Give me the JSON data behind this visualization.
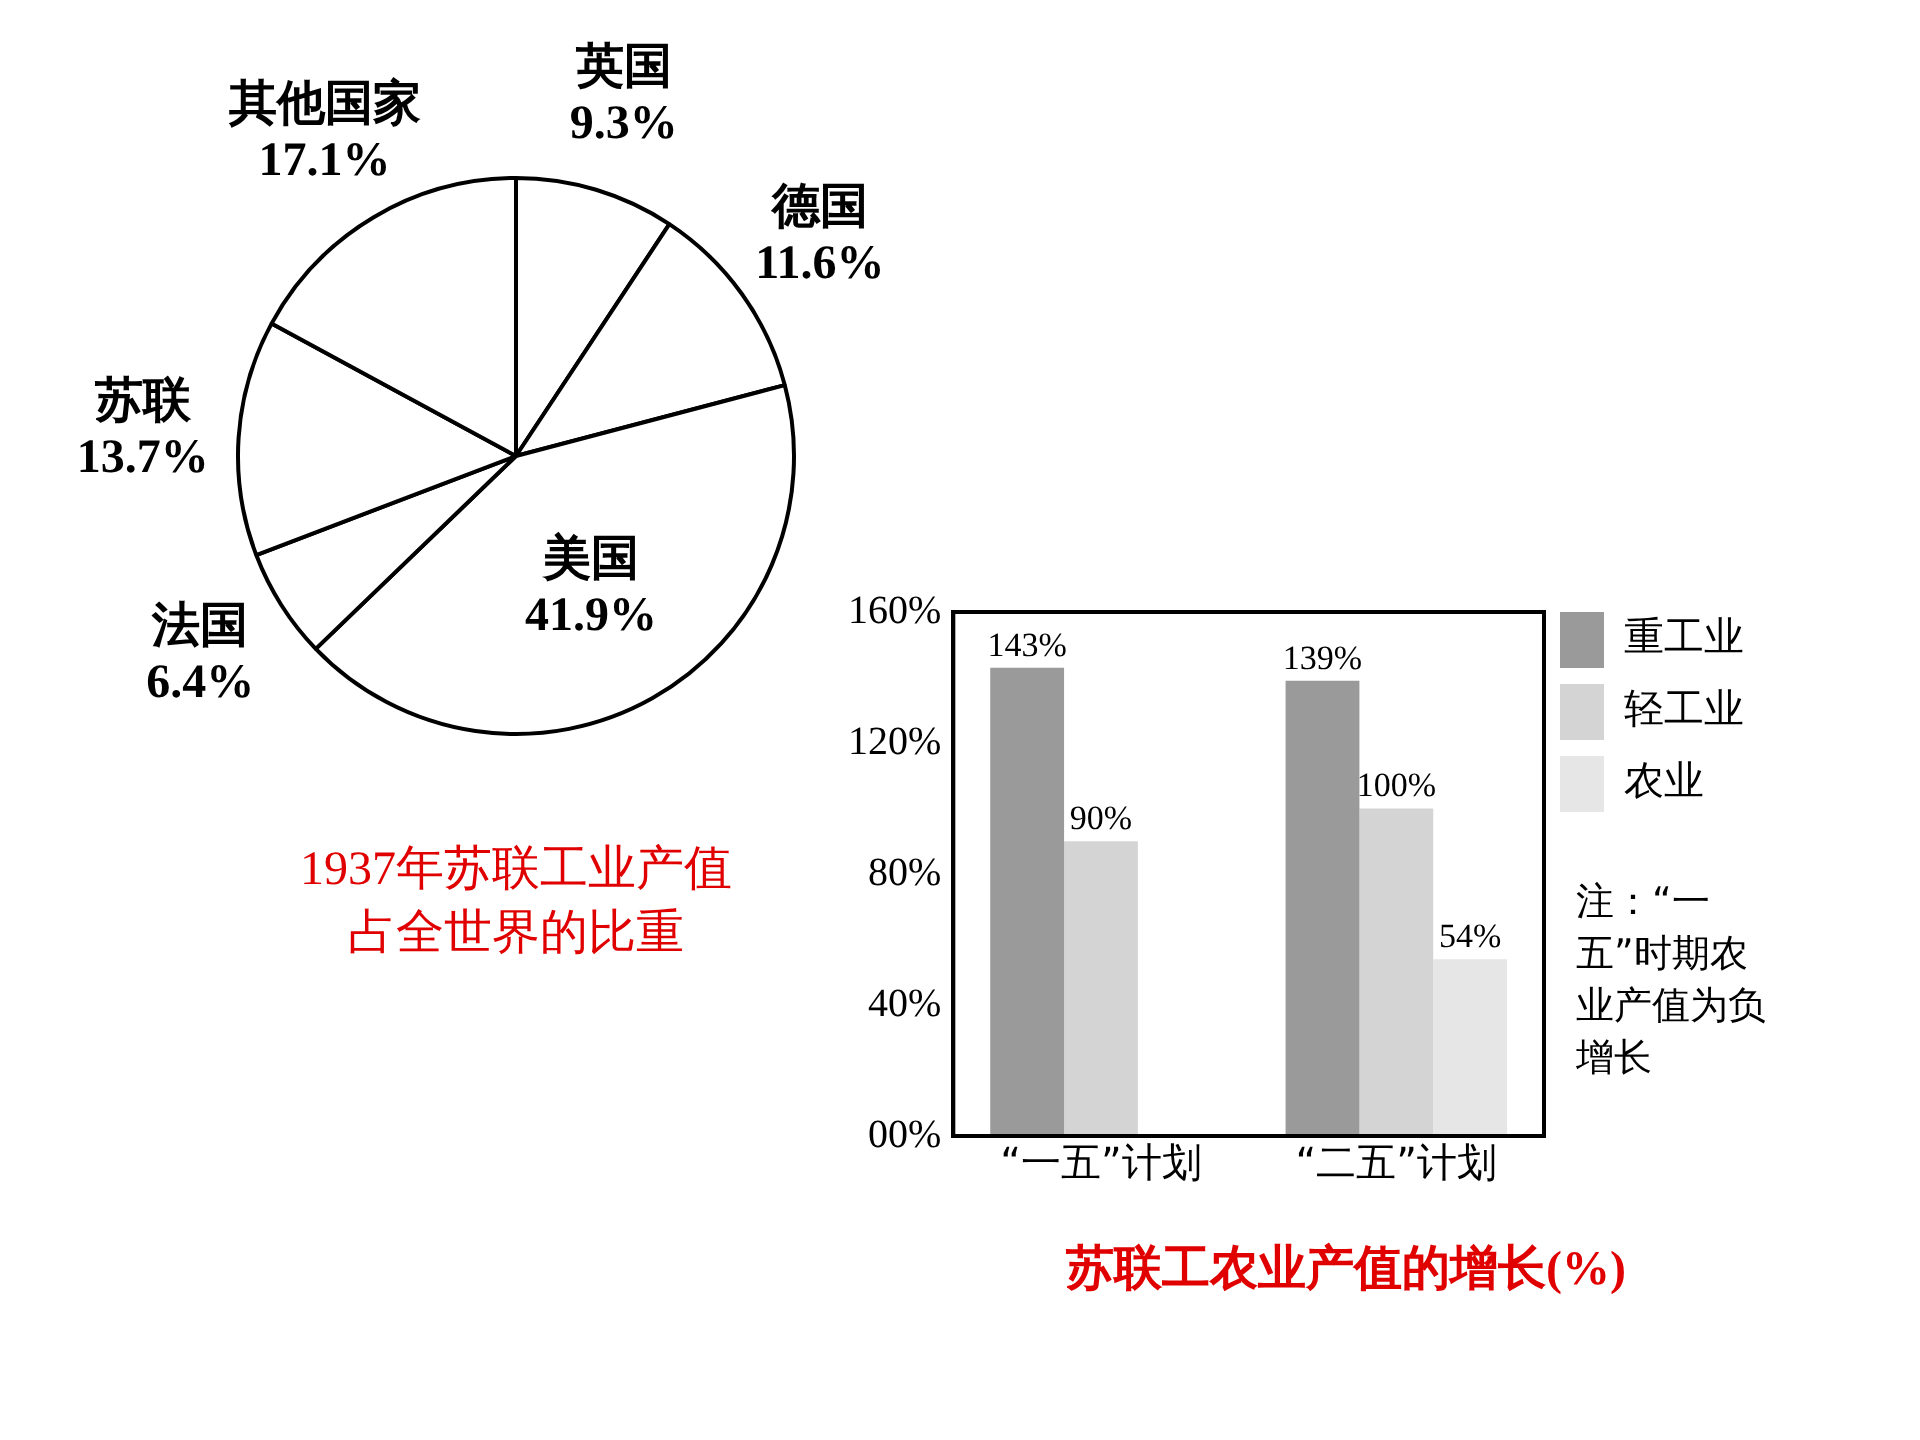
{
  "chart_data": [
    {
      "type": "pie",
      "title": "1937年苏联工业产值占全世界的比重",
      "categories": [
        "英国",
        "德国",
        "美国",
        "法国",
        "苏联",
        "其他国家"
      ],
      "values": [
        9.3,
        11.6,
        41.9,
        6.4,
        13.7,
        17.1
      ],
      "value_labels": [
        "9.3%",
        "11.6%",
        "41.9%",
        "6.4%",
        "13.7%",
        "17.1%"
      ],
      "colors": [
        "#ffffff",
        "#ffffff",
        "#ffffff",
        "#ffffff",
        "#ffffff",
        "#ffffff"
      ]
    },
    {
      "type": "bar",
      "title": "苏联工农业产值的增长(%)",
      "categories": [
        "“一五”计划",
        "“二五”计划"
      ],
      "series": [
        {
          "name": "重工业",
          "color": "#9a9a9a",
          "values": [
            143,
            139
          ],
          "value_labels": [
            "143%",
            "139%"
          ]
        },
        {
          "name": "轻工业",
          "color": "#d4d4d4",
          "values": [
            90,
            100
          ],
          "value_labels": [
            "90%",
            "100%"
          ]
        },
        {
          "name": "农业",
          "color": "#e6e6e6",
          "values": [
            null,
            54
          ],
          "value_labels": [
            null,
            "54%"
          ]
        }
      ],
      "ylim": [
        0,
        160
      ],
      "yticks": [
        {
          "value": 0,
          "label": "00%"
        },
        {
          "value": 40,
          "label": "40%"
        },
        {
          "value": 80,
          "label": "80%"
        },
        {
          "value": 120,
          "label": "120%"
        },
        {
          "value": 160,
          "label": "160%"
        }
      ],
      "grid": false,
      "legend": "top right",
      "annotations": [
        "注：“一五”时期农业产值为负增长"
      ]
    }
  ]
}
